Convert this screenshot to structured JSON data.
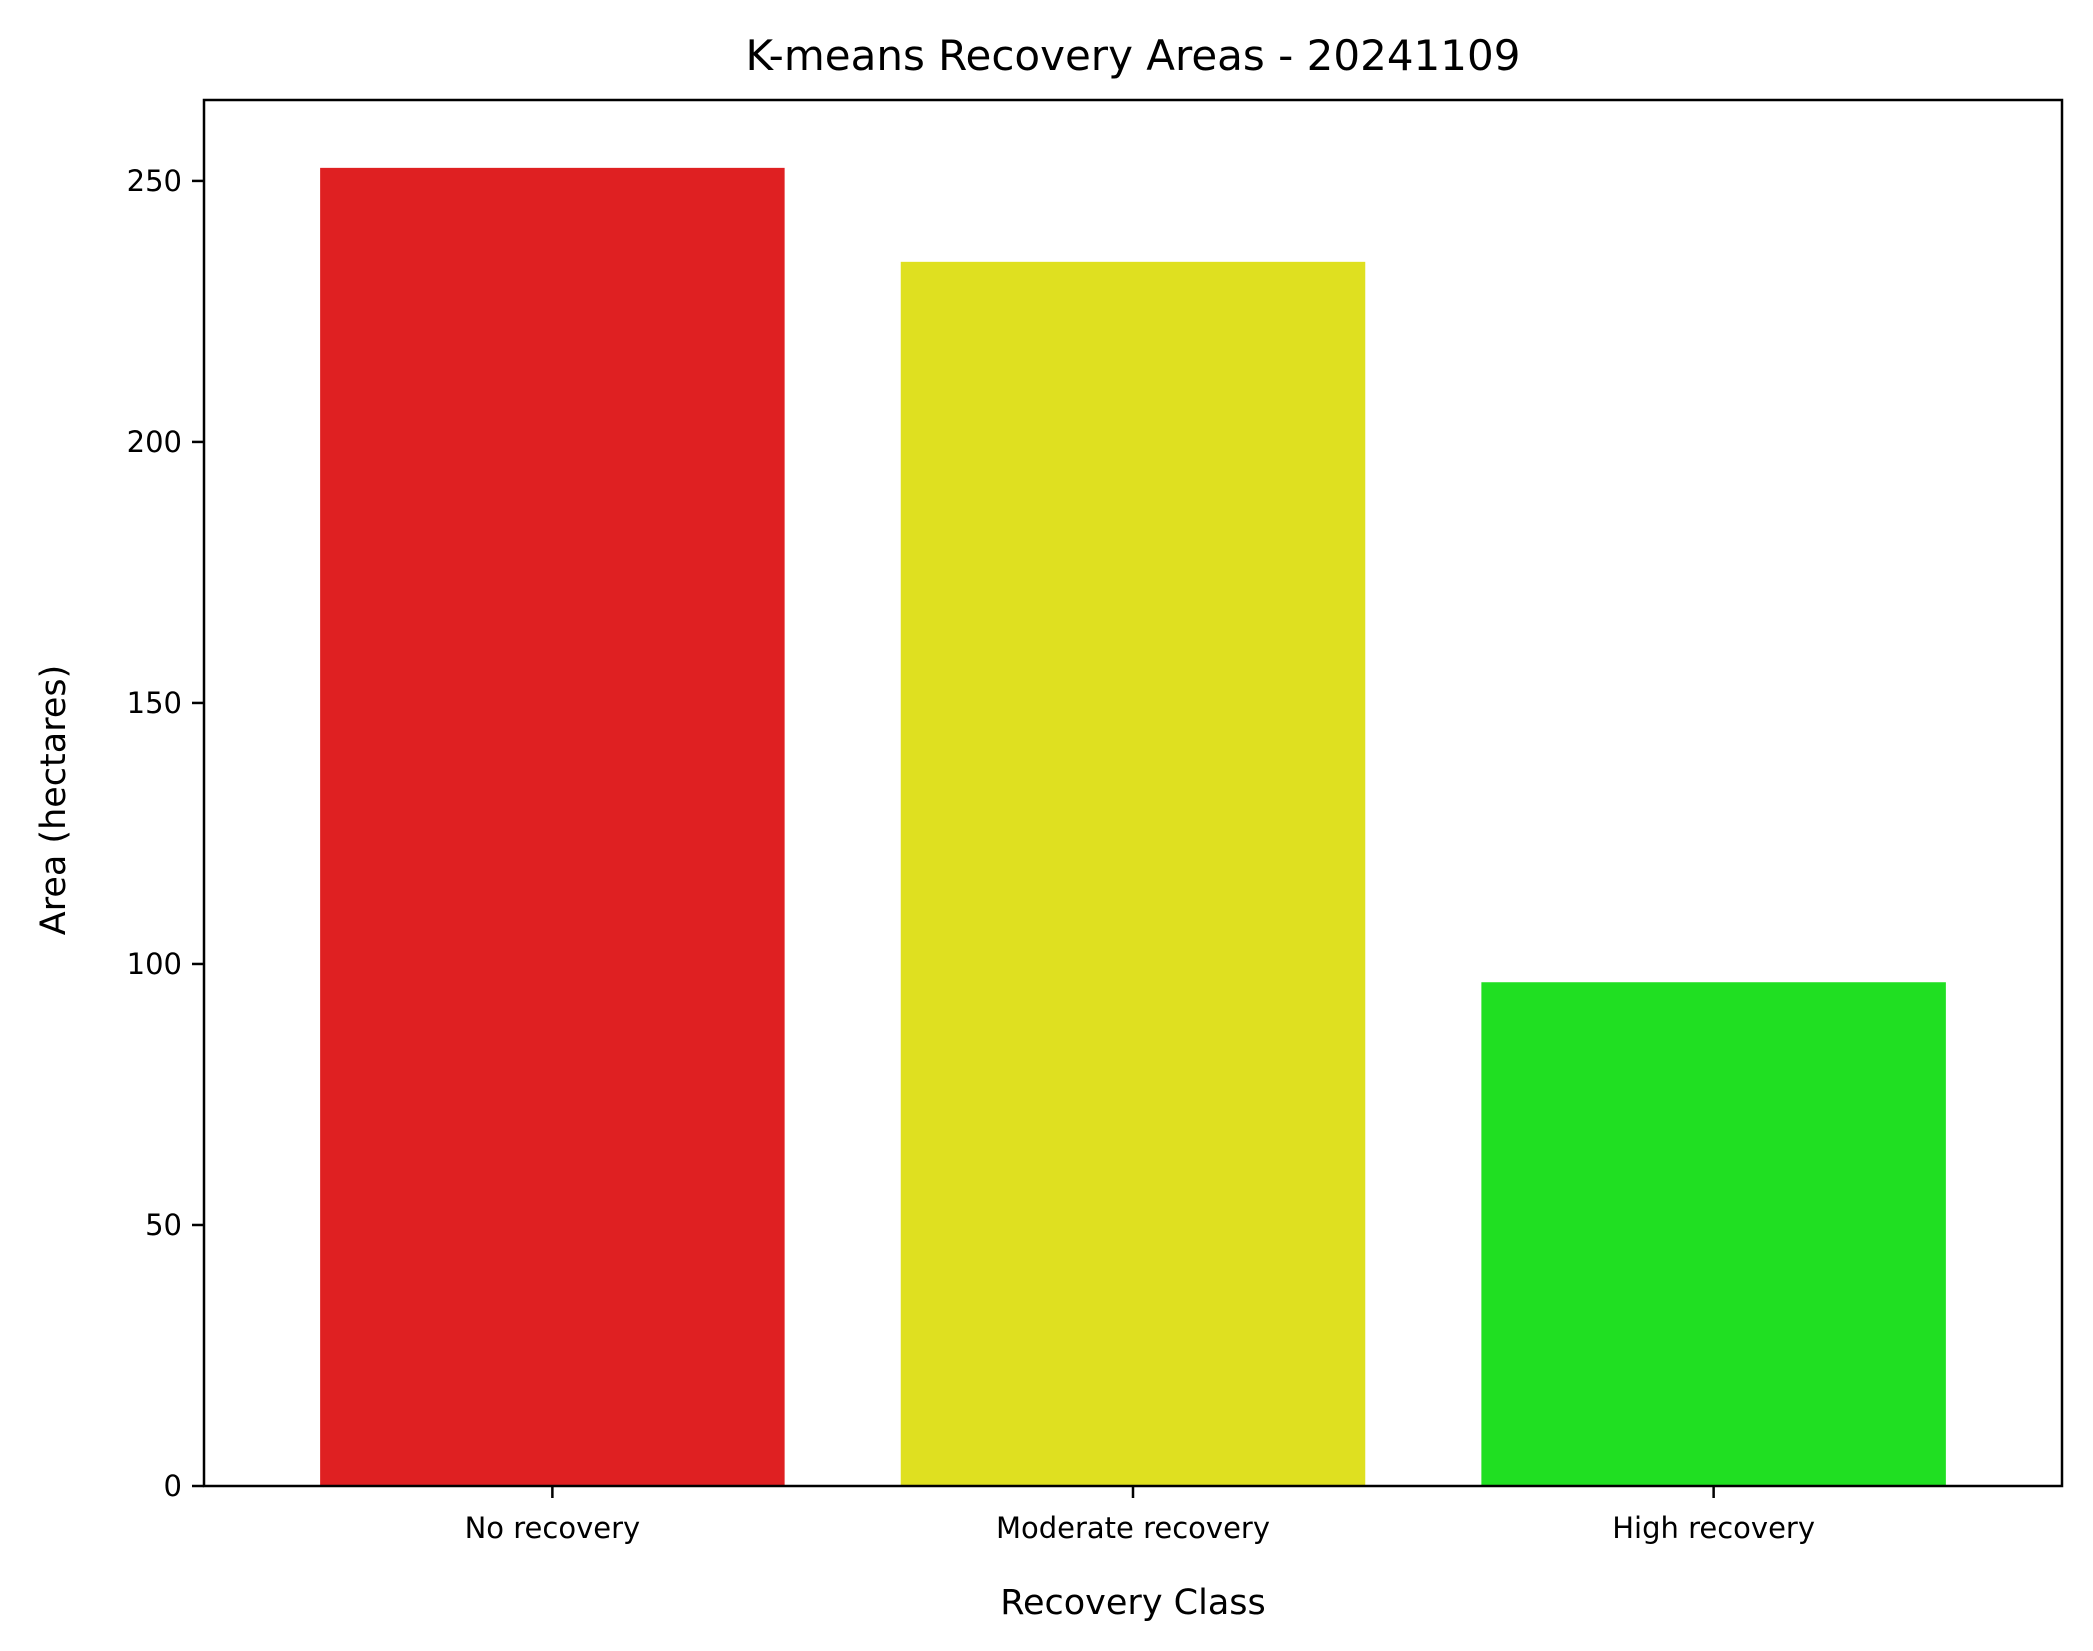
{
  "chart_data": {
    "type": "bar",
    "title": "K-means Recovery Areas - 20241109",
    "xlabel": "Recovery Class",
    "ylabel": "Area (hectares)",
    "categories": [
      "No recovery",
      "Moderate recovery",
      "High recovery"
    ],
    "values": [
      252.5,
      234.5,
      96.5
    ],
    "colors": [
      "#df2022",
      "#dfe020",
      "#20df22"
    ],
    "ylim": [
      0,
      265.5
    ],
    "yticks": [
      0,
      50,
      100,
      150,
      200,
      250
    ],
    "grid": false,
    "legend": "none"
  }
}
